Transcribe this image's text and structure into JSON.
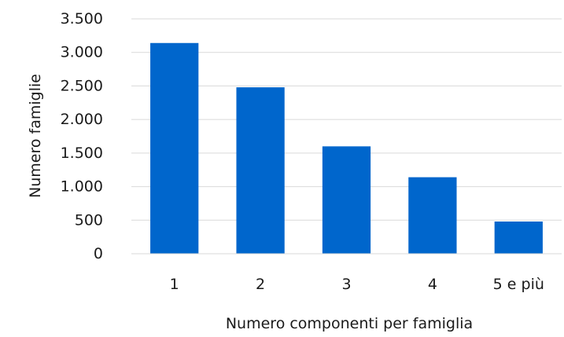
{
  "chart_data": {
    "type": "bar",
    "title": "",
    "xlabel": "Numero componenti per famiglia",
    "ylabel": "Numero famiglie",
    "categories": [
      "1",
      "2",
      "3",
      "4",
      "5 e più"
    ],
    "values": [
      3140,
      2480,
      1600,
      1140,
      480
    ],
    "ylim": [
      0,
      3500
    ],
    "yticks": [
      0,
      500,
      1000,
      1500,
      2000,
      2500,
      3000,
      3500
    ],
    "ytick_labels": [
      "0",
      "500",
      "1.000",
      "1.500",
      "2.000",
      "2.500",
      "3.000",
      "3.500"
    ],
    "grid": true,
    "legend": "none",
    "colors": {
      "bar": "#0066CC",
      "grid": "#d9d9d9",
      "axis": "#d9d9d9"
    }
  }
}
